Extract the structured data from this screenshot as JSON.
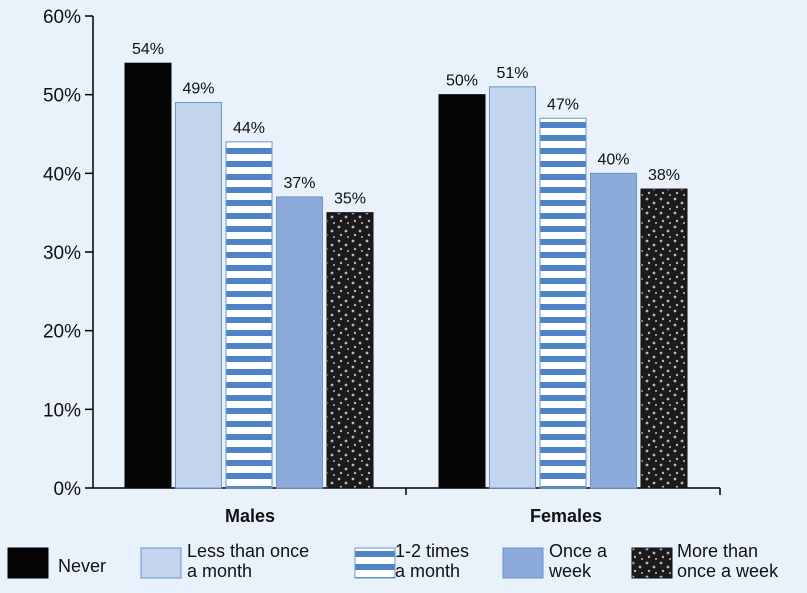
{
  "chart_data": {
    "type": "bar",
    "categories": [
      "Males",
      "Females"
    ],
    "series": [
      {
        "name": "Never",
        "values": [
          54,
          50
        ],
        "pattern": "solid-black"
      },
      {
        "name": "Less than once a month",
        "values": [
          49,
          51
        ],
        "pattern": "light-blue"
      },
      {
        "name": "1-2 times a month",
        "values": [
          44,
          47
        ],
        "pattern": "stripes"
      },
      {
        "name": "Once a week",
        "values": [
          37,
          40
        ],
        "pattern": "mid-blue"
      },
      {
        "name": "More than once a week",
        "values": [
          35,
          38
        ],
        "pattern": "dots"
      }
    ],
    "value_labels": [
      [
        "54%",
        "49%",
        "44%",
        "37%",
        "35%"
      ],
      [
        "50%",
        "51%",
        "47%",
        "40%",
        "38%"
      ]
    ],
    "legend_labels": [
      [
        "Never"
      ],
      [
        "Less than once",
        "a month"
      ],
      [
        "1-2 times",
        "a month"
      ],
      [
        "Once a",
        "week"
      ],
      [
        "More than",
        "once a week"
      ]
    ],
    "ylim": [
      0,
      60
    ],
    "yticks": [
      0,
      10,
      20,
      30,
      40,
      50,
      60
    ],
    "ytick_labels": [
      "0%",
      "10%",
      "20%",
      "30%",
      "40%",
      "50%",
      "60%"
    ],
    "title": "",
    "xlabel": "",
    "ylabel": "",
    "grid": false,
    "legend_position": "bottom",
    "colors": {
      "background": "#e9f1fb",
      "black": "#050505",
      "light_blue": "#c3d4ef",
      "mid_blue": "#8daadc",
      "stripe_blue": "#4f83c8",
      "outline_blue": "#6e94cc",
      "dot_color": "#b8b8b8"
    }
  }
}
